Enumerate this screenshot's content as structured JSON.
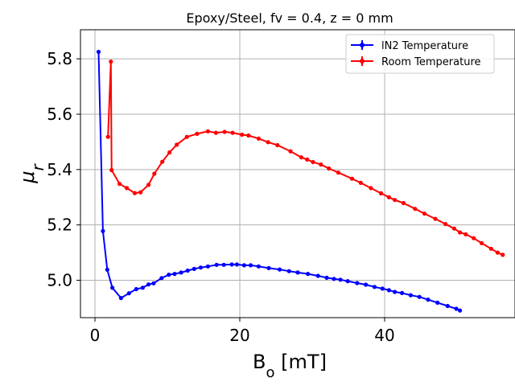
{
  "chart_data": {
    "type": "line",
    "title": "Epoxy/Steel, fv = 0.4, z = 0 mm",
    "xlabel": "B_o [mT]",
    "ylabel": "μ_r",
    "xlim": [
      -2,
      58
    ],
    "ylim": [
      4.865,
      5.905
    ],
    "xticks": [
      0,
      20,
      40
    ],
    "yticks": [
      5.0,
      5.2,
      5.4,
      5.6,
      5.8
    ],
    "xtick_labels": [
      "0",
      "20",
      "40"
    ],
    "ytick_labels": [
      "5.0",
      "5.2",
      "5.4",
      "5.6",
      "5.8"
    ],
    "grid": true,
    "legend_position": "top-right",
    "series": [
      {
        "name": "lN2 Temperature",
        "color": "#0000ff",
        "x": [
          0.5,
          1.1,
          1.7,
          2.4,
          3.6,
          4.7,
          5.7,
          6.6,
          7.4,
          8.1,
          9.2,
          10.2,
          11.0,
          11.9,
          12.8,
          13.7,
          14.6,
          15.6,
          16.8,
          17.8,
          18.9,
          19.6,
          20.6,
          21.5,
          22.6,
          24.0,
          25.5,
          26.8,
          28.0,
          29.4,
          30.8,
          32.0,
          33.0,
          33.9,
          34.9,
          36.2,
          37.4,
          38.6,
          39.7,
          40.6,
          41.4,
          42.4,
          43.6,
          44.8,
          46.0,
          47.3,
          48.7,
          49.9,
          50.4
        ],
        "y": [
          5.825,
          5.178,
          5.038,
          4.973,
          4.936,
          4.953,
          4.968,
          4.973,
          4.985,
          4.989,
          5.008,
          5.02,
          5.023,
          5.028,
          5.035,
          5.041,
          5.046,
          5.05,
          5.056,
          5.056,
          5.057,
          5.057,
          5.054,
          5.054,
          5.05,
          5.044,
          5.039,
          5.033,
          5.028,
          5.023,
          5.016,
          5.009,
          5.005,
          5.002,
          4.997,
          4.99,
          4.984,
          4.976,
          4.97,
          4.964,
          4.958,
          4.954,
          4.946,
          4.94,
          4.93,
          4.919,
          4.907,
          4.897,
          4.891
        ]
      },
      {
        "name": "Room Temperature",
        "color": "#ff0000",
        "x": [
          1.8,
          2.2,
          2.3,
          3.4,
          4.4,
          5.5,
          6.3,
          7.4,
          8.2,
          9.3,
          10.3,
          11.3,
          12.7,
          14.1,
          15.6,
          16.7,
          17.9,
          19.0,
          20.3,
          21.2,
          22.6,
          23.9,
          25.2,
          27.0,
          28.5,
          29.3,
          30.1,
          31.2,
          32.3,
          33.6,
          35.5,
          36.7,
          38.1,
          39.5,
          40.6,
          41.4,
          42.6,
          44.2,
          45.5,
          47.0,
          48.4,
          49.6,
          50.4,
          51.2,
          52.3,
          53.4,
          54.7,
          55.6,
          56.3
        ],
        "y": [
          5.518,
          5.79,
          5.398,
          5.348,
          5.333,
          5.315,
          5.318,
          5.345,
          5.385,
          5.428,
          5.462,
          5.49,
          5.518,
          5.529,
          5.538,
          5.533,
          5.536,
          5.533,
          5.526,
          5.523,
          5.512,
          5.499,
          5.488,
          5.466,
          5.444,
          5.436,
          5.427,
          5.418,
          5.404,
          5.389,
          5.367,
          5.352,
          5.333,
          5.314,
          5.3,
          5.29,
          5.279,
          5.258,
          5.241,
          5.222,
          5.203,
          5.187,
          5.173,
          5.166,
          5.152,
          5.134,
          5.114,
          5.1,
          5.092
        ]
      }
    ]
  }
}
